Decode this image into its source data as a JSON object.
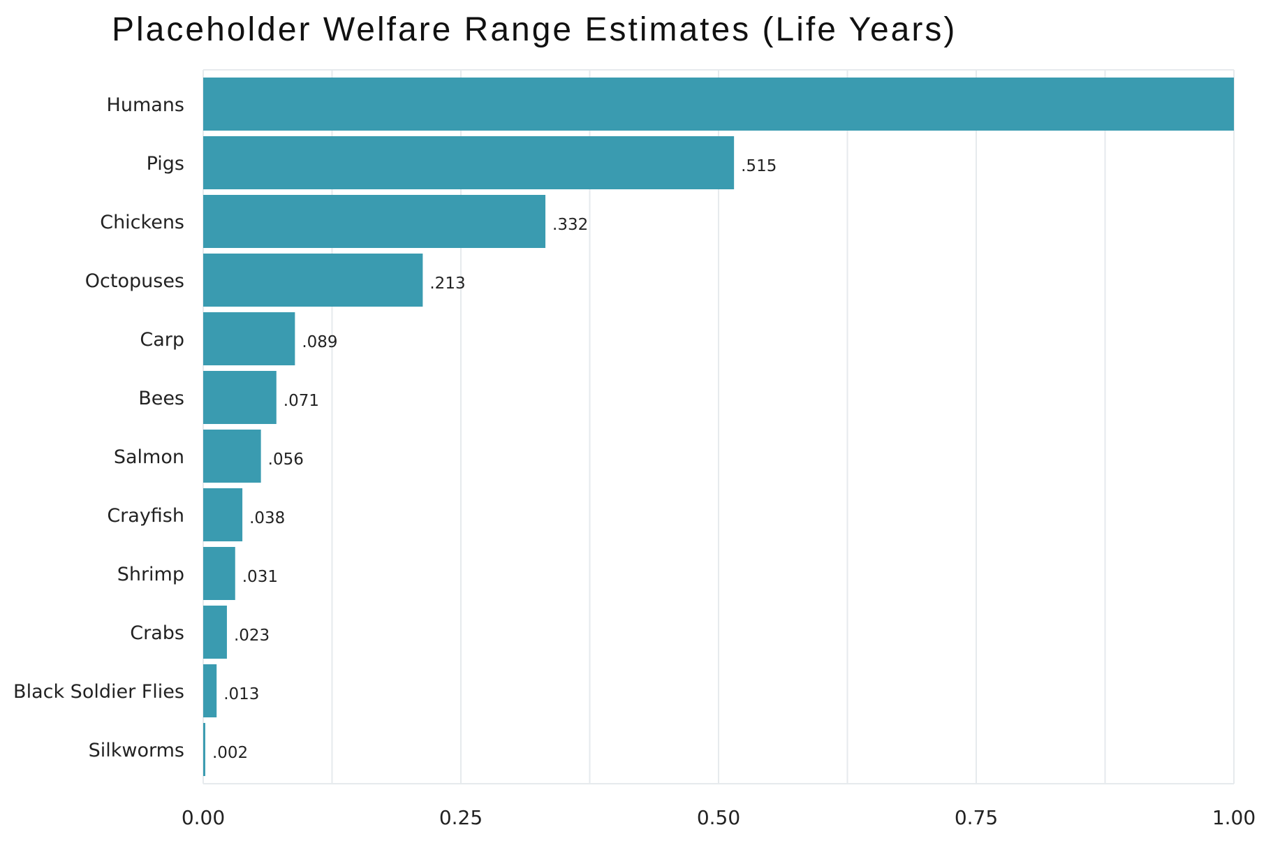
{
  "chart_data": {
    "type": "bar",
    "orientation": "horizontal",
    "title": "Placeholder Welfare Range Estimates (Life Years)",
    "xlabel": "",
    "ylabel": "",
    "xlim": [
      0,
      1
    ],
    "grid": true,
    "legend": "none",
    "bar_color": "#3a9bb0",
    "categories": [
      "Humans",
      "Pigs",
      "Chickens",
      "Octopuses",
      "Carp",
      "Bees",
      "Salmon",
      "Crayfish",
      "Shrimp",
      "Crabs",
      "Black Soldier Flies",
      "Silkworms"
    ],
    "values": [
      1.0,
      0.515,
      0.332,
      0.213,
      0.089,
      0.071,
      0.056,
      0.038,
      0.031,
      0.023,
      0.013,
      0.002
    ],
    "value_labels": [
      "",
      ".515",
      ".332",
      ".213",
      ".089",
      ".071",
      ".056",
      ".038",
      ".031",
      ".023",
      ".013",
      ".002"
    ],
    "x_ticks": [
      0,
      0.25,
      0.5,
      0.75,
      1.0
    ],
    "x_tick_labels": [
      "0.00",
      "0.25",
      "0.50",
      "0.75",
      "1.00"
    ]
  }
}
